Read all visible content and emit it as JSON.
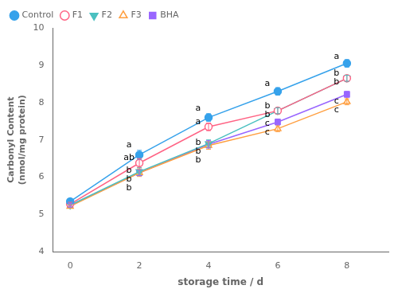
{
  "chart_data": {
    "type": "line",
    "x": [
      0,
      2,
      4,
      6,
      8
    ],
    "series": [
      {
        "name": "Control",
        "values": [
          5.35,
          6.6,
          7.6,
          8.3,
          9.05
        ],
        "yerr": [
          0.05,
          0.12,
          0.1,
          0.1,
          0.1
        ],
        "marker": "circle"
      },
      {
        "name": "F1",
        "values": [
          5.28,
          6.38,
          7.35,
          7.78,
          8.65
        ],
        "yerr": [
          0.05,
          0.12,
          0.1,
          0.08,
          0.08
        ],
        "marker": "circle-open"
      },
      {
        "name": "F2",
        "values": [
          5.25,
          6.15,
          6.9,
          7.78,
          8.65
        ],
        "yerr": [
          0.05,
          0.1,
          0.1,
          0.08,
          0.08
        ],
        "marker": "triangle-down"
      },
      {
        "name": "F3",
        "values": [
          5.22,
          6.12,
          6.85,
          7.3,
          8.02
        ],
        "yerr": [
          0.05,
          0.1,
          0.1,
          0.08,
          0.08
        ],
        "marker": "triangle-up-open"
      },
      {
        "name": "BHA",
        "values": [
          5.25,
          6.12,
          6.88,
          7.48,
          8.22
        ],
        "yerr": [
          0.05,
          0.08,
          0.1,
          0.08,
          0.08
        ],
        "marker": "square"
      }
    ],
    "xlabel": "storage time / d",
    "ylabel": "Carbonyl Content\n(nmol/mg protein)",
    "xlim": [
      -0.5,
      9.2
    ],
    "ylim": [
      4,
      10
    ],
    "xticks": [
      0,
      2,
      4,
      6,
      8
    ],
    "yticks": [
      4,
      5,
      6,
      7,
      8,
      9,
      10
    ],
    "grid": false,
    "legend": "upper left",
    "annotations": [
      {
        "text": "a",
        "x": 1.7,
        "y": 6.76
      },
      {
        "text": "ab",
        "x": 1.7,
        "y": 6.42
      },
      {
        "text": "b",
        "x": 1.7,
        "y": 6.07
      },
      {
        "text": "b",
        "x": 1.7,
        "y": 5.92
      },
      {
        "text": "b",
        "x": 1.7,
        "y": 6.03
      },
      {
        "text": "a",
        "x": 3.7,
        "y": 7.76
      },
      {
        "text": "a",
        "x": 3.7,
        "y": 7.4
      },
      {
        "text": "b",
        "x": 3.7,
        "y": 6.85
      },
      {
        "text": "b",
        "x": 3.7,
        "y": 6.63
      },
      {
        "text": "b",
        "x": 3.7,
        "y": 6.76
      },
      {
        "text": "a",
        "x": 5.7,
        "y": 8.44
      },
      {
        "text": "b",
        "x": 5.7,
        "y": 7.84
      },
      {
        "text": "b",
        "x": 5.7,
        "y": 7.74
      },
      {
        "text": "c",
        "x": 5.7,
        "y": 7.16
      },
      {
        "text": "c",
        "x": 5.7,
        "y": 7.54
      },
      {
        "text": "a",
        "x": 7.7,
        "y": 9.19
      },
      {
        "text": "b",
        "x": 7.7,
        "y": 8.73
      },
      {
        "text": "b",
        "x": 7.7,
        "y": 8.59
      },
      {
        "text": "c",
        "x": 7.7,
        "y": 7.88
      },
      {
        "text": "c",
        "x": 7.7,
        "y": 7.98
      }
    ]
  }
}
